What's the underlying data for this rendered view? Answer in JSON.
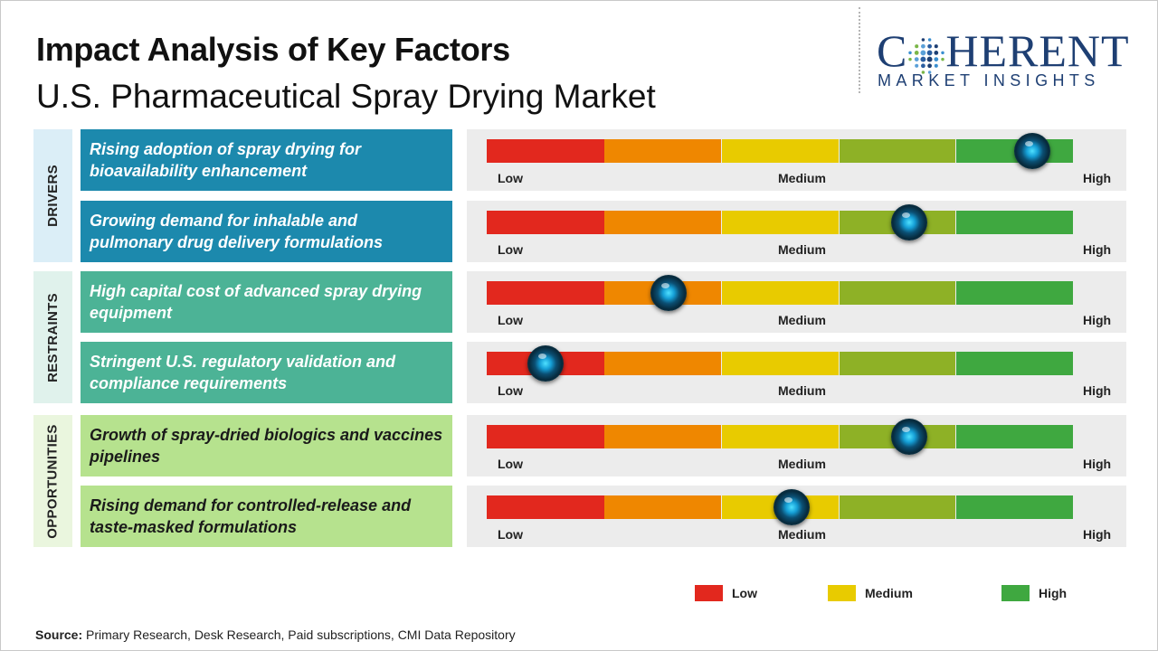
{
  "title": "Impact Analysis of Key Factors",
  "subtitle": "U.S. Pharmaceutical Spray Drying Market",
  "logo": {
    "top": "COHERENT",
    "bottom": "MARKET INSIGHTS"
  },
  "colors": {
    "scale": [
      "#e2281e",
      "#ef8700",
      "#e8cb00",
      "#8eb126",
      "#3fa840"
    ],
    "drivers": "#1c89ad",
    "restraints": "#4cb396",
    "opportunities": "#b6e28e"
  },
  "scale_labels": {
    "low": "Low",
    "medium": "Medium",
    "high": "High"
  },
  "legend": [
    {
      "label": "Low",
      "color": "#e2281e"
    },
    {
      "label": "Medium",
      "color": "#e8cb00"
    },
    {
      "label": "High",
      "color": "#3fa840"
    }
  ],
  "source": {
    "label": "Source:",
    "text": "Primary Research, Desk Research, Paid subscriptions, CMI Data Repository"
  },
  "chart_data": {
    "type": "gauge",
    "scale": {
      "min": 0,
      "max": 1,
      "segments": 5
    },
    "categories": [
      {
        "name": "DRIVERS",
        "factors": [
          {
            "label": "Rising adoption of spray drying for bioavailability enhancement",
            "impact": 0.93
          },
          {
            "label": "Growing demand for inhalable and pulmonary drug delivery formulations",
            "impact": 0.72
          }
        ]
      },
      {
        "name": "RESTRAINTS",
        "factors": [
          {
            "label": "High capital cost of advanced spray drying equipment",
            "impact": 0.31
          },
          {
            "label": "Stringent U.S. regulatory validation and compliance requirements",
            "impact": 0.1
          }
        ]
      },
      {
        "name": "OPPORTUNITIES",
        "factors": [
          {
            "label": "Growth of spray-dried biologics and vaccines pipelines",
            "impact": 0.72
          },
          {
            "label": "Rising demand for controlled-release and taste-masked formulations",
            "impact": 0.52
          }
        ]
      }
    ]
  }
}
